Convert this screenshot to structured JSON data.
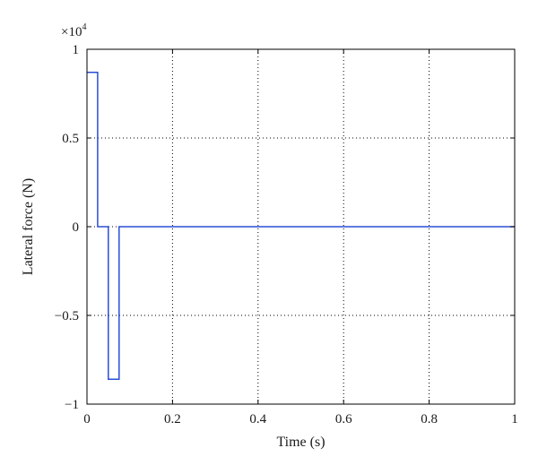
{
  "chart_data": {
    "type": "line",
    "title": "",
    "xlabel": "Time (s)",
    "ylabel": "Lateral force (N)",
    "y_multiplier": {
      "base": "×10",
      "exponent": "4"
    },
    "xlim": [
      0,
      1
    ],
    "ylim": [
      -1,
      1
    ],
    "x_ticks": [
      0,
      0.2,
      0.4,
      0.6,
      0.8,
      1
    ],
    "x_tick_labels": [
      "0",
      "0.2",
      "0.4",
      "0.6",
      "0.8",
      "1"
    ],
    "y_ticks": [
      -1,
      -0.5,
      0,
      0.5,
      1
    ],
    "y_tick_labels": [
      "−1",
      "−0.5",
      "0",
      "0.5",
      "1"
    ],
    "grid": true,
    "series": [
      {
        "color": "#2b4fd6",
        "x": [
          0,
          0.025,
          0.025,
          0.05,
          0.05,
          0.075,
          0.075,
          1
        ],
        "y": [
          0.87,
          0.87,
          0,
          0,
          -0.86,
          -0.86,
          0,
          0
        ]
      }
    ]
  }
}
